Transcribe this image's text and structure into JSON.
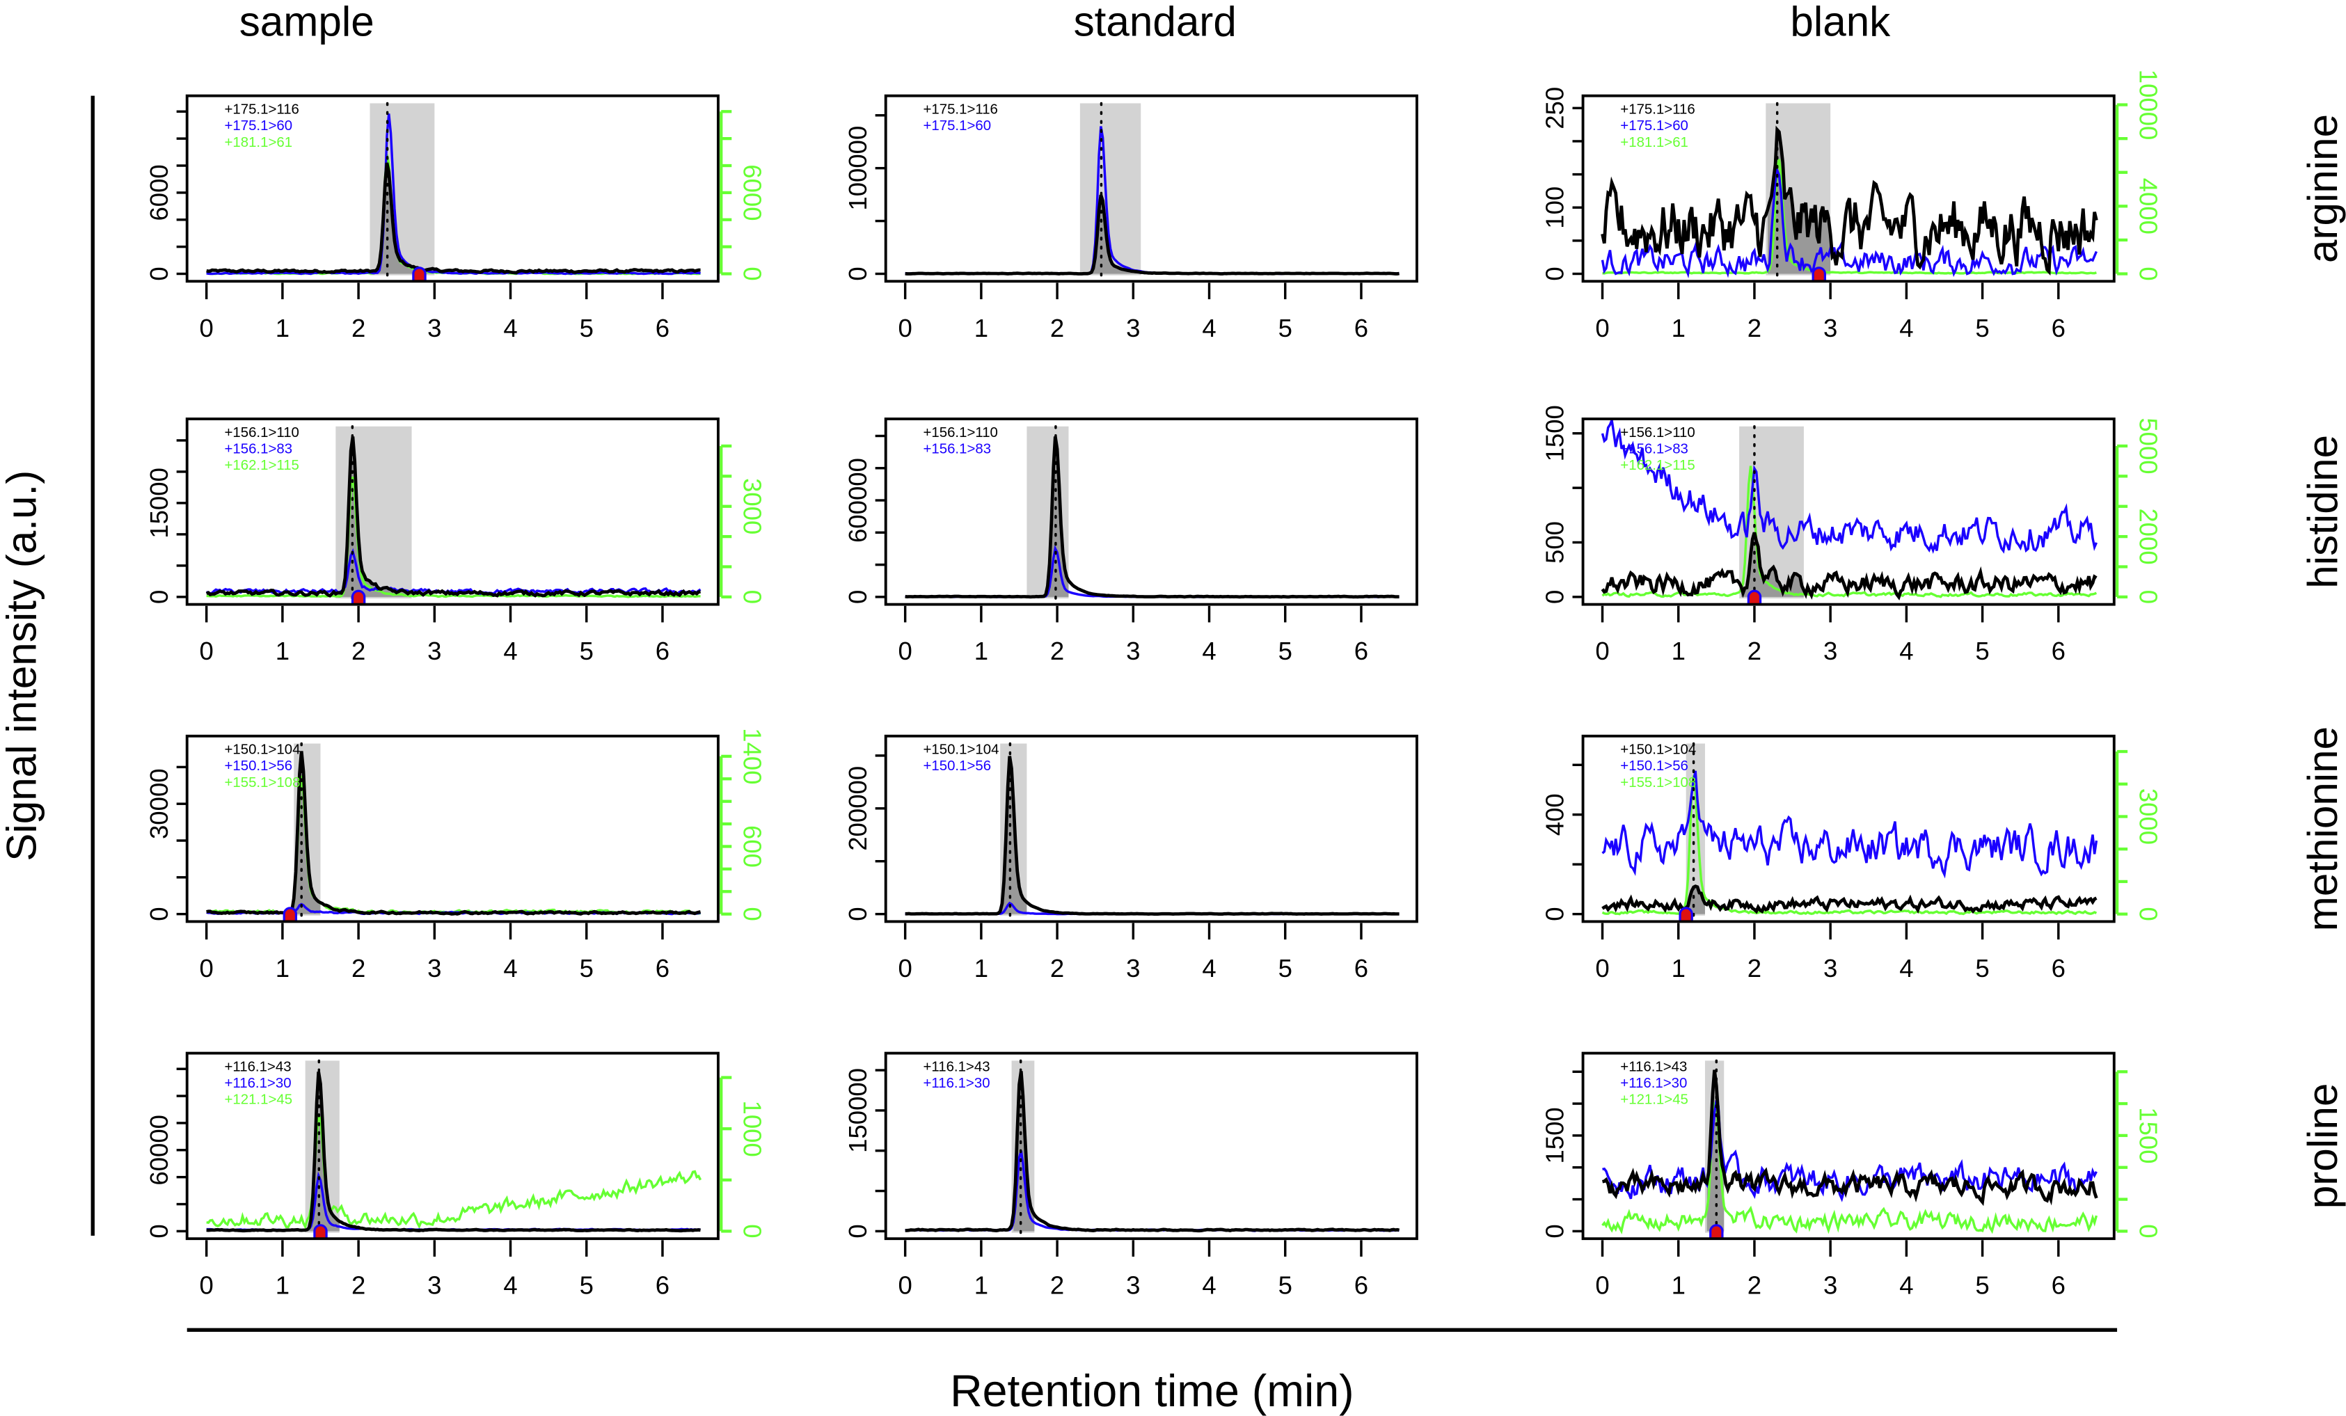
{
  "chart_data": {
    "type": "line",
    "columns": [
      "sample",
      "standard",
      "blank"
    ],
    "rows": [
      "arginine",
      "histidine",
      "methionine",
      "proline"
    ],
    "ylabel": "Signal intensity (a.u.)",
    "xlabel": "Retention time (min)",
    "xlim": [
      0,
      6.5
    ],
    "x_ticks": [
      0,
      1,
      2,
      3,
      4,
      5,
      6
    ],
    "colors": {
      "quantifier": "#000000",
      "qualifier": "#1a00ff",
      "internal_standard": "#66ff33",
      "window": "#d3d3d3",
      "integrated": "#999999",
      "marker": "#dd1111"
    },
    "panels": [
      {
        "row": "arginine",
        "col": "sample",
        "ylim": [
          0,
          12500
        ],
        "left_ticks": [
          0,
          2000,
          4000,
          6000,
          8000,
          10000,
          12000
        ],
        "left_labels": [
          0,
          6000
        ],
        "y2lim": [
          0,
          12500
        ],
        "right_ticks": [
          0,
          2000,
          4000,
          6000,
          8000,
          10000,
          12000
        ],
        "right_labels": [
          0,
          6000
        ],
        "window": [
          2.15,
          3.0
        ],
        "apex_rt": 2.38,
        "marker_rt": 2.8,
        "transitions": [
          {
            "label": "+175.1>116",
            "color": "#000000",
            "axis": "left",
            "peak": 8000,
            "rt": 2.38,
            "baseline": 200,
            "noise": 80
          },
          {
            "label": "+175.1>60",
            "color": "#1a00ff",
            "axis": "left",
            "peak": 11800,
            "rt": 2.4,
            "baseline": 50,
            "noise": 40
          },
          {
            "label": "+181.1>61",
            "color": "#66ff33",
            "axis": "right",
            "peak": 8800,
            "rt": 2.38,
            "baseline": 30,
            "noise": 40
          }
        ]
      },
      {
        "row": "arginine",
        "col": "standard",
        "ylim": [
          0,
          160000
        ],
        "left_ticks": [
          0,
          50000,
          100000,
          150000
        ],
        "left_labels": [
          0,
          100000
        ],
        "window": [
          2.3,
          3.1
        ],
        "apex_rt": 2.58,
        "marker_rt": null,
        "transitions": [
          {
            "label": "+175.1>116",
            "color": "#000000",
            "axis": "left",
            "peak": 75000,
            "rt": 2.58,
            "baseline": 300,
            "noise": 200
          },
          {
            "label": "+175.1>60",
            "color": "#1a00ff",
            "axis": "left",
            "peak": 140000,
            "rt": 2.58,
            "baseline": 300,
            "noise": 200
          }
        ]
      },
      {
        "row": "arginine",
        "col": "blank",
        "ylim": [
          0,
          255
        ],
        "left_ticks": [
          0,
          50,
          100,
          150,
          200,
          250
        ],
        "left_labels": [
          0,
          100,
          250
        ],
        "y2lim": [
          0,
          10000
        ],
        "right_ticks": [
          0,
          2000,
          4000,
          6000,
          8000,
          10000
        ],
        "right_labels": [
          0,
          4000,
          10000
        ],
        "window": [
          2.15,
          3.0
        ],
        "apex_rt": 2.3,
        "marker_rt": 2.85,
        "transitions": [
          {
            "label": "+175.1>116",
            "color": "#000000",
            "axis": "left",
            "peak": 120,
            "rt": 2.3,
            "baseline": 70,
            "noise": 45
          },
          {
            "label": "+175.1>60",
            "color": "#1a00ff",
            "axis": "left",
            "peak": 160,
            "rt": 2.3,
            "baseline": 18,
            "noise": 18
          },
          {
            "label": "+181.1>61",
            "color": "#66ff33",
            "axis": "right",
            "peak": 6800,
            "rt": 2.32,
            "baseline": 60,
            "noise": 30
          }
        ]
      },
      {
        "row": "histidine",
        "col": "sample",
        "ylim": [
          0,
          27000
        ],
        "left_ticks": [
          0,
          5000,
          10000,
          15000,
          20000,
          25000
        ],
        "left_labels": [
          0,
          15000
        ],
        "y2lim": [
          0,
          5600
        ],
        "right_ticks": [
          0,
          1000,
          2000,
          3000,
          4000,
          5000
        ],
        "right_labels": [
          0,
          3000
        ],
        "window": [
          1.7,
          2.7
        ],
        "apex_rt": 1.92,
        "marker_rt": 2.0,
        "transitions": [
          {
            "label": "+156.1>110",
            "color": "#000000",
            "axis": "left",
            "peak": 25000,
            "rt": 1.92,
            "baseline": 600,
            "noise": 300
          },
          {
            "label": "+156.1>83",
            "color": "#1a00ff",
            "axis": "left",
            "peak": 6000,
            "rt": 1.92,
            "baseline": 900,
            "noise": 300
          },
          {
            "label": "+162.1>115",
            "color": "#66ff33",
            "axis": "right",
            "peak": 4000,
            "rt": 1.92,
            "baseline": 30,
            "noise": 20
          }
        ]
      },
      {
        "row": "histidine",
        "col": "standard",
        "ylim": [
          0,
          1050000
        ],
        "left_ticks": [
          0,
          200000,
          400000,
          600000,
          800000,
          1000000
        ],
        "left_labels": [
          0,
          600000
        ],
        "window": [
          1.6,
          2.15
        ],
        "apex_rt": 1.98,
        "marker_rt": null,
        "transitions": [
          {
            "label": "+156.1>110",
            "color": "#000000",
            "axis": "left",
            "peak": 1000000,
            "rt": 1.98,
            "baseline": 2000,
            "noise": 1500
          },
          {
            "label": "+156.1>83",
            "color": "#1a00ff",
            "axis": "left",
            "peak": 300000,
            "rt": 1.98,
            "baseline": 1000,
            "noise": 1000
          }
        ]
      },
      {
        "row": "histidine",
        "col": "blank",
        "ylim": [
          0,
          1550
        ],
        "left_ticks": [
          0,
          500,
          1000,
          1500
        ],
        "left_labels": [
          0,
          500,
          1500
        ],
        "y2lim": [
          0,
          5600
        ],
        "right_ticks": [
          0,
          1000,
          2000,
          3000,
          4000,
          5000
        ],
        "right_labels": [
          0,
          2000,
          5000
        ],
        "window": [
          1.8,
          2.65
        ],
        "apex_rt": 2.0,
        "marker_rt": 2.0,
        "transitions": [
          {
            "label": "+156.1>110",
            "color": "#000000",
            "axis": "left",
            "peak": 500,
            "rt": 2.0,
            "baseline": 120,
            "noise": 80
          },
          {
            "label": "+156.1>83",
            "color": "#1a00ff",
            "axis": "left",
            "peak": 500,
            "rt": 2.0,
            "baseline": 600,
            "noise": 130
          },
          {
            "label": "+162.1>115",
            "color": "#66ff33",
            "axis": "right",
            "peak": 4300,
            "rt": 1.95,
            "baseline": 80,
            "noise": 50
          }
        ]
      },
      {
        "row": "methionine",
        "col": "sample",
        "ylim": [
          0,
          46000
        ],
        "left_ticks": [
          0,
          10000,
          20000,
          30000,
          40000
        ],
        "left_labels": [
          0,
          30000
        ],
        "y2lim": [
          0,
          1500
        ],
        "right_ticks": [
          0,
          200,
          400,
          600,
          800,
          1000,
          1200,
          1400
        ],
        "right_labels": [
          0,
          600,
          1400
        ],
        "window": [
          1.15,
          1.5
        ],
        "apex_rt": 1.25,
        "marker_rt": 1.1,
        "transitions": [
          {
            "label": "+150.1>104",
            "color": "#000000",
            "axis": "left",
            "peak": 44000,
            "rt": 1.25,
            "baseline": 400,
            "noise": 250
          },
          {
            "label": "+150.1>56",
            "color": "#1a00ff",
            "axis": "left",
            "peak": 2500,
            "rt": 1.25,
            "baseline": 300,
            "noise": 200
          },
          {
            "label": "+155.1>108",
            "color": "#66ff33",
            "axis": "right",
            "peak": 1200,
            "rt": 1.25,
            "baseline": 20,
            "noise": 12
          }
        ]
      },
      {
        "row": "methionine",
        "col": "standard",
        "ylim": [
          0,
          320000
        ],
        "left_ticks": [
          0,
          100000,
          200000,
          300000
        ],
        "left_labels": [
          0,
          200000
        ],
        "window": [
          1.25,
          1.6
        ],
        "apex_rt": 1.38,
        "marker_rt": null,
        "transitions": [
          {
            "label": "+150.1>104",
            "color": "#000000",
            "axis": "left",
            "peak": 300000,
            "rt": 1.38,
            "baseline": 500,
            "noise": 400
          },
          {
            "label": "+150.1>56",
            "color": "#1a00ff",
            "axis": "left",
            "peak": 20000,
            "rt": 1.38,
            "baseline": 300,
            "noise": 300
          }
        ]
      },
      {
        "row": "methionine",
        "col": "blank",
        "ylim": [
          0,
          680
        ],
        "left_ticks": [
          0,
          200,
          400,
          600
        ],
        "left_labels": [
          0,
          400
        ],
        "y2lim": [
          0,
          5200
        ],
        "right_ticks": [
          0,
          1000,
          2000,
          3000,
          4000,
          5000
        ],
        "right_labels": [
          0,
          3000
        ],
        "window": [
          1.1,
          1.35
        ],
        "apex_rt": 1.2,
        "marker_rt": 1.1,
        "transitions": [
          {
            "label": "+150.1>104",
            "color": "#000000",
            "axis": "left",
            "peak": 80,
            "rt": 1.2,
            "baseline": 40,
            "noise": 20
          },
          {
            "label": "+150.1>56",
            "color": "#1a00ff",
            "axis": "left",
            "peak": 350,
            "rt": 1.2,
            "baseline": 270,
            "noise": 70
          },
          {
            "label": "+155.1>108",
            "color": "#66ff33",
            "axis": "right",
            "peak": 4200,
            "rt": 1.2,
            "baseline": 50,
            "noise": 40
          }
        ]
      },
      {
        "row": "proline",
        "col": "sample",
        "ylim": [
          0,
          125000
        ],
        "left_ticks": [
          0,
          20000,
          40000,
          60000,
          80000,
          100000,
          120000
        ],
        "left_labels": [
          0,
          60000
        ],
        "y2lim": [
          0,
          1650
        ],
        "right_ticks": [
          0,
          500,
          1000,
          1500
        ],
        "right_labels": [
          0,
          1000
        ],
        "window": [
          1.3,
          1.75
        ],
        "apex_rt": 1.48,
        "marker_rt": 1.5,
        "transitions": [
          {
            "label": "+116.1>43",
            "color": "#000000",
            "axis": "left",
            "peak": 118000,
            "rt": 1.48,
            "baseline": 800,
            "noise": 300
          },
          {
            "label": "+116.1>30",
            "color": "#1a00ff",
            "axis": "left",
            "peak": 40000,
            "rt": 1.48,
            "baseline": 1200,
            "noise": 300
          },
          {
            "label": "+121.1>45",
            "color": "#66ff33",
            "axis": "right",
            "peak": 1050,
            "rt": 1.48,
            "baseline": 120,
            "noise": 60
          }
        ]
      },
      {
        "row": "proline",
        "col": "standard",
        "ylim": [
          0,
          210000
        ],
        "left_ticks": [
          0,
          50000,
          100000,
          150000,
          200000
        ],
        "left_labels": [
          0,
          150000
        ],
        "window": [
          1.4,
          1.7
        ],
        "apex_rt": 1.52,
        "marker_rt": null,
        "transitions": [
          {
            "label": "+116.1>43",
            "color": "#000000",
            "axis": "left",
            "peak": 200000,
            "rt": 1.52,
            "baseline": 1500,
            "noise": 600
          },
          {
            "label": "+116.1>30",
            "color": "#1a00ff",
            "axis": "left",
            "peak": 100000,
            "rt": 1.52,
            "baseline": 1200,
            "noise": 500
          }
        ]
      },
      {
        "row": "proline",
        "col": "blank",
        "ylim": [
          0,
          2650
        ],
        "left_ticks": [
          0,
          500,
          1000,
          1500,
          2000,
          2500
        ],
        "left_labels": [
          0,
          1500
        ],
        "y2lim": [
          0,
          2650
        ],
        "right_ticks": [
          0,
          500,
          1000,
          1500,
          2000,
          2500
        ],
        "right_labels": [
          0,
          1500
        ],
        "window": [
          1.35,
          1.6
        ],
        "apex_rt": 1.5,
        "marker_rt": 1.5,
        "transitions": [
          {
            "label": "+116.1>43",
            "color": "#000000",
            "axis": "left",
            "peak": 1700,
            "rt": 1.48,
            "baseline": 700,
            "noise": 150
          },
          {
            "label": "+116.1>30",
            "color": "#1a00ff",
            "axis": "left",
            "peak": 1300,
            "rt": 1.5,
            "baseline": 800,
            "noise": 200
          },
          {
            "label": "+121.1>45",
            "color": "#66ff33",
            "axis": "right",
            "peak": 1900,
            "rt": 1.48,
            "baseline": 150,
            "noise": 120
          }
        ]
      }
    ]
  }
}
